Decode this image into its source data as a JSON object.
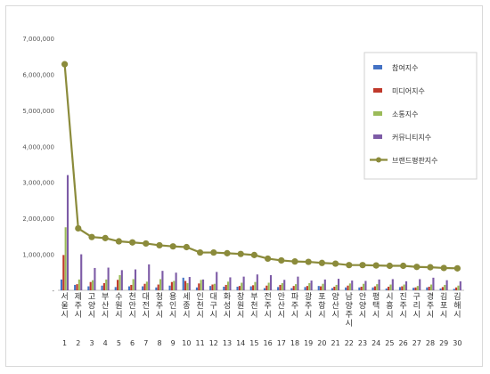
{
  "chart_data": {
    "type": "bar",
    "title": "",
    "xlabel": "",
    "ylabel": "",
    "ylim": [
      0,
      7000000
    ],
    "y_ticks": [
      "-",
      "1,000,000",
      "2,000,000",
      "3,000,000",
      "4,000,000",
      "5,000,000",
      "6,000,000",
      "7,000,000"
    ],
    "y_tick_values": [
      0,
      1000000,
      2000000,
      3000000,
      4000000,
      5000000,
      6000000,
      7000000
    ],
    "grid": false,
    "legend_position": "right",
    "categories": [
      "서울시",
      "제주시",
      "고양시",
      "부산시",
      "수원시",
      "천안시",
      "대전시",
      "청주시",
      "용인시",
      "세종시",
      "인천시",
      "대구시",
      "화성시",
      "창원시",
      "부천시",
      "전주시",
      "안산시",
      "파주시",
      "광주시",
      "포항시",
      "양산시",
      "남양주시",
      "안양시",
      "평택시",
      "시흥시",
      "진주시",
      "구리시",
      "경주시",
      "김포시",
      "김해시"
    ],
    "ranks": [
      "1",
      "2",
      "3",
      "4",
      "5",
      "6",
      "7",
      "8",
      "9",
      "10",
      "11",
      "12",
      "13",
      "14",
      "15",
      "16",
      "17",
      "18",
      "19",
      "20",
      "21",
      "22",
      "23",
      "24",
      "25",
      "26",
      "27",
      "28",
      "29",
      "30"
    ],
    "series": [
      {
        "name": "참여지수",
        "type": "bar",
        "color": "#4472c4",
        "values": [
          300000,
          150000,
          110000,
          130000,
          90000,
          110000,
          110000,
          80000,
          130000,
          350000,
          80000,
          120000,
          100000,
          100000,
          110000,
          60000,
          90000,
          60000,
          90000,
          120000,
          60000,
          80000,
          80000,
          80000,
          50000,
          90000,
          70000,
          80000,
          50000,
          40000
        ]
      },
      {
        "name": "미디어지수",
        "type": "bar",
        "color": "#c0392b",
        "values": [
          980000,
          170000,
          230000,
          200000,
          290000,
          150000,
          180000,
          160000,
          230000,
          260000,
          190000,
          160000,
          150000,
          120000,
          140000,
          130000,
          150000,
          120000,
          120000,
          110000,
          100000,
          130000,
          100000,
          110000,
          100000,
          110000,
          80000,
          100000,
          90000,
          80000
        ]
      },
      {
        "name": "소통지수",
        "type": "bar",
        "color": "#9bbb59",
        "values": [
          1750000,
          300000,
          280000,
          300000,
          420000,
          310000,
          240000,
          310000,
          260000,
          200000,
          290000,
          180000,
          240000,
          210000,
          230000,
          210000,
          200000,
          170000,
          200000,
          180000,
          150000,
          190000,
          180000,
          170000,
          160000,
          160000,
          120000,
          160000,
          150000,
          130000
        ]
      },
      {
        "name": "커뮤니티지수",
        "type": "bar",
        "color": "#7d5ba6",
        "values": [
          3200000,
          1000000,
          620000,
          630000,
          560000,
          580000,
          720000,
          540000,
          490000,
          370000,
          300000,
          510000,
          360000,
          380000,
          440000,
          420000,
          290000,
          380000,
          270000,
          300000,
          320000,
          270000,
          260000,
          300000,
          310000,
          250000,
          310000,
          350000,
          280000,
          250000
        ]
      },
      {
        "name": "브랜드평판지수",
        "type": "line",
        "color": "#8b8b3b",
        "values": [
          6280000,
          1720000,
          1480000,
          1450000,
          1360000,
          1330000,
          1300000,
          1250000,
          1220000,
          1200000,
          1050000,
          1050000,
          1030000,
          1010000,
          980000,
          880000,
          830000,
          800000,
          790000,
          760000,
          740000,
          700000,
          700000,
          690000,
          680000,
          680000,
          650000,
          640000,
          620000,
          610000
        ]
      }
    ]
  }
}
